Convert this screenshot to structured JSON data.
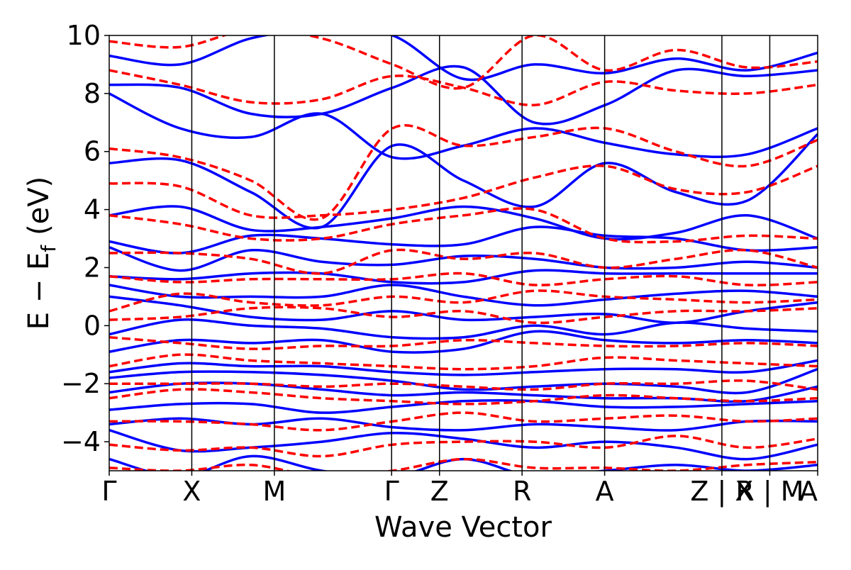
{
  "chart_data": {
    "type": "line",
    "title": "",
    "xlabel": "Wave Vector",
    "ylabel": "E − E",
    "ylabel_subscript": "f",
    "ylabel_unit": "(eV)",
    "ylim": [
      -5,
      10
    ],
    "yticks": [
      {
        "value": -4,
        "label": "−4"
      },
      {
        "value": -2,
        "label": "−2"
      },
      {
        "value": 0,
        "label": "0"
      },
      {
        "value": 2,
        "label": "2"
      },
      {
        "value": 4,
        "label": "4"
      },
      {
        "value": 6,
        "label": "6"
      },
      {
        "value": 8,
        "label": "8"
      },
      {
        "value": 10,
        "label": "10"
      }
    ],
    "kpoints": [
      {
        "label": "Γ",
        "x": 0.0
      },
      {
        "label": "X",
        "x": 1.0
      },
      {
        "label": "M",
        "x": 2.0
      },
      {
        "label": "Γ",
        "x": 3.42
      },
      {
        "label": "Z",
        "x": 4.0
      },
      {
        "label": "R",
        "x": 5.0
      },
      {
        "label": "A",
        "x": 6.0
      },
      {
        "label": "Z | X",
        "x": 7.42
      },
      {
        "label": "R | M",
        "x": 8.0
      },
      {
        "label": "A",
        "x": 8.58
      }
    ],
    "xlim": [
      0.0,
      8.58
    ],
    "grid": false,
    "series": [
      {
        "style": "solid",
        "color": "#0000ff",
        "bands": [
          [
            9.3,
            9.0,
            9.9,
            10.2,
            10.0,
            8.5,
            9.0,
            8.7,
            9.2,
            8.8,
            9.4
          ],
          [
            8.3,
            8.2,
            7.3,
            7.3,
            8.2,
            8.9,
            7.0,
            7.6,
            8.8,
            8.6,
            8.8
          ],
          [
            8.0,
            6.8,
            6.5,
            7.3,
            5.8,
            6.2,
            6.8,
            6.3,
            5.9,
            5.9,
            6.8
          ],
          [
            5.6,
            5.7,
            4.6,
            3.4,
            6.2,
            5.0,
            4.1,
            5.6,
            4.6,
            4.3,
            6.6
          ],
          [
            3.8,
            4.1,
            3.3,
            3.4,
            3.7,
            4.1,
            3.7,
            3.0,
            3.2,
            3.8,
            3.0
          ],
          [
            2.9,
            2.5,
            3.1,
            3.0,
            2.8,
            2.8,
            3.4,
            3.1,
            3.0,
            2.6,
            2.7
          ],
          [
            2.7,
            1.9,
            2.6,
            2.2,
            2.1,
            2.4,
            2.3,
            2.0,
            2.0,
            2.2,
            2.0
          ],
          [
            1.7,
            1.6,
            1.8,
            1.8,
            1.5,
            1.5,
            1.9,
            1.8,
            1.8,
            1.8,
            1.8
          ],
          [
            1.4,
            1.0,
            1.0,
            1.0,
            1.4,
            1.0,
            0.7,
            0.9,
            1.1,
            1.2,
            1.0
          ],
          [
            1.0,
            0.7,
            0.3,
            0.2,
            0.5,
            0.2,
            0.3,
            0.4,
            0.1,
            0.5,
            0.8
          ],
          [
            -0.3,
            0.2,
            0.0,
            -0.1,
            -0.4,
            -0.4,
            0.0,
            -0.3,
            0.1,
            -0.1,
            -0.2
          ],
          [
            -0.9,
            -0.5,
            -0.6,
            -0.5,
            -0.9,
            -0.8,
            -0.2,
            -0.5,
            -0.6,
            -0.5,
            -0.6
          ],
          [
            -1.6,
            -1.3,
            -1.4,
            -1.4,
            -1.6,
            -1.7,
            -1.6,
            -1.5,
            -1.5,
            -1.6,
            -1.2
          ],
          [
            -1.8,
            -1.6,
            -1.6,
            -1.7,
            -1.9,
            -2.2,
            -2.1,
            -2.0,
            -2.1,
            -2.3,
            -1.5
          ],
          [
            -2.3,
            -2.0,
            -2.0,
            -2.2,
            -2.4,
            -2.3,
            -2.4,
            -2.5,
            -2.5,
            -2.6,
            -2.1
          ],
          [
            -2.9,
            -2.7,
            -2.7,
            -3.0,
            -2.8,
            -2.6,
            -2.6,
            -2.8,
            -2.8,
            -2.7,
            -2.6
          ],
          [
            -3.4,
            -3.2,
            -3.4,
            -3.2,
            -3.5,
            -3.6,
            -3.4,
            -3.5,
            -3.6,
            -3.3,
            -3.3
          ],
          [
            -3.6,
            -4.3,
            -4.2,
            -4.0,
            -3.7,
            -3.9,
            -4.2,
            -4.0,
            -4.2,
            -4.6,
            -4.1
          ],
          [
            -4.6,
            -5.2,
            -4.5,
            -5.0,
            -5.2,
            -4.6,
            -5.2,
            -5.0,
            -4.8,
            -5.0,
            -4.8
          ]
        ]
      },
      {
        "style": "dashed",
        "color": "#ff0000",
        "bands": [
          [
            9.8,
            9.6,
            10.2,
            9.9,
            9.0,
            8.2,
            10.0,
            8.8,
            9.5,
            8.9,
            9.1
          ],
          [
            8.8,
            8.3,
            7.7,
            7.8,
            8.6,
            8.2,
            7.6,
            8.4,
            8.1,
            8.0,
            8.3
          ],
          [
            6.1,
            5.8,
            5.0,
            3.7,
            6.8,
            6.2,
            6.5,
            6.8,
            6.0,
            5.5,
            6.4
          ],
          [
            4.9,
            4.8,
            3.8,
            3.8,
            4.0,
            4.4,
            5.1,
            5.5,
            4.7,
            4.6,
            5.5
          ],
          [
            3.8,
            3.5,
            3.0,
            3.0,
            3.5,
            3.8,
            4.0,
            3.0,
            2.9,
            3.1,
            3.0
          ],
          [
            2.5,
            2.5,
            2.3,
            1.8,
            2.6,
            2.3,
            2.5,
            2.0,
            2.3,
            2.6,
            2.0
          ],
          [
            1.7,
            1.5,
            1.6,
            1.6,
            1.6,
            1.8,
            1.4,
            1.6,
            1.7,
            1.4,
            1.5
          ],
          [
            0.5,
            1.1,
            0.8,
            0.7,
            1.0,
            0.8,
            1.2,
            1.0,
            0.9,
            0.8,
            0.9
          ],
          [
            0.2,
            0.3,
            0.6,
            0.6,
            0.3,
            0.5,
            0.1,
            0.3,
            0.5,
            0.5,
            0.6
          ],
          [
            -0.4,
            -0.6,
            -0.8,
            -0.7,
            -0.7,
            -0.5,
            -0.6,
            -0.7,
            -0.7,
            -0.6,
            -0.7
          ],
          [
            -1.4,
            -1.0,
            -1.2,
            -1.3,
            -1.4,
            -1.5,
            -1.4,
            -1.1,
            -1.2,
            -1.3,
            -1.4
          ],
          [
            -2.0,
            -2.0,
            -2.0,
            -2.1,
            -2.0,
            -2.1,
            -2.2,
            -2.0,
            -2.0,
            -1.9,
            -2.2
          ],
          [
            -2.5,
            -2.2,
            -2.3,
            -2.5,
            -2.6,
            -2.7,
            -2.6,
            -2.4,
            -2.5,
            -2.6,
            -2.5
          ],
          [
            -3.3,
            -3.3,
            -3.4,
            -3.6,
            -3.3,
            -3.0,
            -3.3,
            -3.2,
            -3.1,
            -3.3,
            -3.2
          ],
          [
            -4.1,
            -4.3,
            -4.2,
            -4.5,
            -4.1,
            -4.0,
            -4.0,
            -4.2,
            -3.8,
            -4.2,
            -3.9
          ],
          [
            -4.9,
            -5.0,
            -4.8,
            -5.2,
            -5.0,
            -4.6,
            -4.9,
            -4.9,
            -5.0,
            -4.8,
            -4.7
          ]
        ]
      }
    ]
  }
}
